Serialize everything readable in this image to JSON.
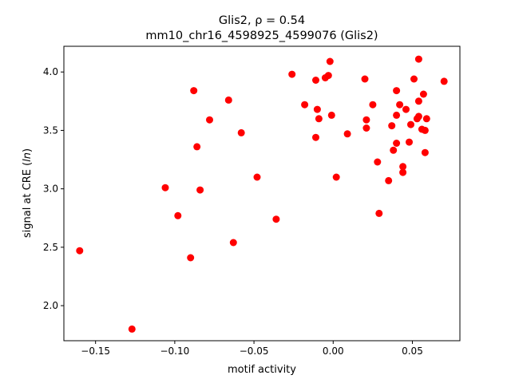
{
  "chart_data": {
    "type": "scatter",
    "title_line1": "Glis2, ρ = 0.54",
    "title_line2": "mm10_chr16_4598925_4599076 (Glis2)",
    "xlabel": "motif activity",
    "ylabel": "signal at CRE (ln)",
    "xlim": [
      -0.17,
      0.08
    ],
    "ylim": [
      1.7,
      4.22
    ],
    "xticks": [
      {
        "value": -0.15,
        "label": "−0.15"
      },
      {
        "value": -0.1,
        "label": "−0.10"
      },
      {
        "value": -0.05,
        "label": "−0.05"
      },
      {
        "value": 0.0,
        "label": "0.00"
      },
      {
        "value": 0.05,
        "label": "0.05"
      }
    ],
    "yticks": [
      {
        "value": 2.0,
        "label": "2.0"
      },
      {
        "value": 2.5,
        "label": "2.5"
      },
      {
        "value": 3.0,
        "label": "3.0"
      },
      {
        "value": 3.5,
        "label": "3.5"
      },
      {
        "value": 4.0,
        "label": "4.0"
      }
    ],
    "grid": false,
    "marker_color": "#ff0000",
    "points": [
      [
        -0.16,
        2.47
      ],
      [
        -0.127,
        1.8
      ],
      [
        -0.106,
        3.01
      ],
      [
        -0.098,
        2.77
      ],
      [
        -0.09,
        2.41
      ],
      [
        -0.088,
        3.84
      ],
      [
        -0.086,
        3.36
      ],
      [
        -0.084,
        2.99
      ],
      [
        -0.078,
        3.59
      ],
      [
        -0.066,
        3.76
      ],
      [
        -0.063,
        2.54
      ],
      [
        -0.058,
        3.48
      ],
      [
        -0.048,
        3.1
      ],
      [
        -0.036,
        2.74
      ],
      [
        -0.026,
        3.98
      ],
      [
        -0.018,
        3.72
      ],
      [
        -0.011,
        3.93
      ],
      [
        -0.011,
        3.44
      ],
      [
        -0.01,
        3.68
      ],
      [
        -0.009,
        3.6
      ],
      [
        -0.005,
        3.95
      ],
      [
        -0.003,
        3.97
      ],
      [
        -0.002,
        4.09
      ],
      [
        -0.001,
        3.63
      ],
      [
        0.002,
        3.1
      ],
      [
        0.009,
        3.47
      ],
      [
        0.02,
        3.94
      ],
      [
        0.021,
        3.59
      ],
      [
        0.021,
        3.52
      ],
      [
        0.025,
        3.72
      ],
      [
        0.028,
        3.23
      ],
      [
        0.029,
        2.79
      ],
      [
        0.035,
        3.07
      ],
      [
        0.037,
        3.54
      ],
      [
        0.038,
        3.33
      ],
      [
        0.04,
        3.84
      ],
      [
        0.04,
        3.63
      ],
      [
        0.04,
        3.39
      ],
      [
        0.042,
        3.72
      ],
      [
        0.044,
        3.14
      ],
      [
        0.044,
        3.19
      ],
      [
        0.046,
        3.68
      ],
      [
        0.048,
        3.4
      ],
      [
        0.049,
        3.55
      ],
      [
        0.051,
        3.94
      ],
      [
        0.053,
        3.6
      ],
      [
        0.054,
        4.11
      ],
      [
        0.054,
        3.75
      ],
      [
        0.054,
        3.62
      ],
      [
        0.056,
        3.51
      ],
      [
        0.057,
        3.81
      ],
      [
        0.058,
        3.5
      ],
      [
        0.058,
        3.31
      ],
      [
        0.059,
        3.6
      ],
      [
        0.07,
        3.92
      ]
    ]
  }
}
